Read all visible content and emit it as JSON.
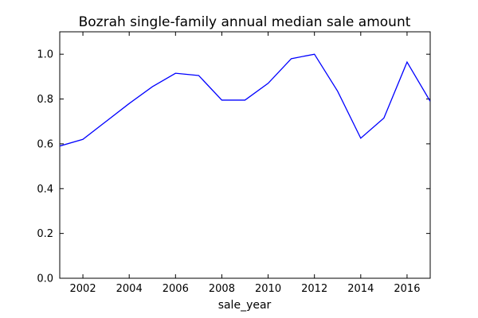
{
  "chart_data": {
    "type": "line",
    "title": "Bozrah single-family annual median sale amount",
    "xlabel": "sale_year",
    "ylabel": "",
    "x": [
      2001,
      2002,
      2003,
      2004,
      2005,
      2006,
      2007,
      2008,
      2009,
      2010,
      2011,
      2012,
      2013,
      2014,
      2015,
      2016,
      2017
    ],
    "series": [
      {
        "values": [
          0.59,
          0.62,
          0.7,
          0.78,
          0.855,
          0.915,
          0.905,
          0.795,
          0.795,
          0.87,
          0.98,
          1.0,
          0.835,
          0.625,
          0.715,
          0.965,
          0.79
        ]
      }
    ],
    "xlim": [
      2001,
      2017
    ],
    "ylim": [
      0.0,
      1.1
    ],
    "xticks": [
      2002,
      2004,
      2006,
      2008,
      2010,
      2012,
      2014,
      2016
    ],
    "xtick_labels": [
      "2002",
      "2004",
      "2006",
      "2008",
      "2010",
      "2012",
      "2014",
      "2016"
    ],
    "yticks": [
      0.0,
      0.2,
      0.4,
      0.6,
      0.8,
      1.0
    ],
    "ytick_labels": [
      "0.0",
      "0.2",
      "0.4",
      "0.6",
      "0.8",
      "1.0"
    ],
    "grid": false,
    "legend": "none",
    "line_color": "#0000ff"
  }
}
